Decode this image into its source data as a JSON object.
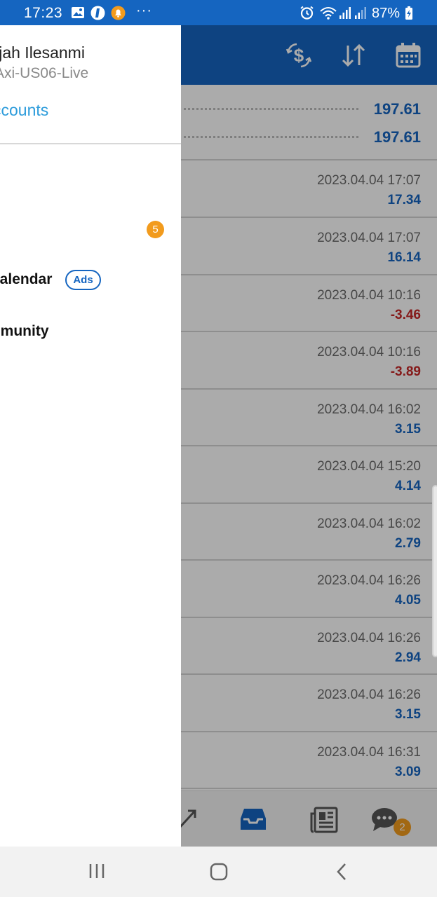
{
  "status_bar": {
    "time": "17:23",
    "battery": "87%",
    "more": "···"
  },
  "drawer": {
    "user_name": "lijah Ilesanmi",
    "server": "Axi-US06-Live",
    "accounts_link": "ccounts",
    "mailbox_badge": "5",
    "calendar_label": "calendar",
    "ads_badge": "Ads",
    "community_label": "mmunity"
  },
  "summary": {
    "row1_value": "197.61",
    "row2_value": "197.61"
  },
  "trades": [
    {
      "date": "2023.04.04 17:07",
      "profit": "17.34",
      "negative": false
    },
    {
      "date": "2023.04.04 17:07",
      "profit": "16.14",
      "negative": false
    },
    {
      "date": "2023.04.04 10:16",
      "profit": "-3.46",
      "negative": true
    },
    {
      "date": "2023.04.04 10:16",
      "profit": "-3.89",
      "negative": true
    },
    {
      "date": "2023.04.04 16:02",
      "profit": "3.15",
      "negative": false
    },
    {
      "date": "2023.04.04 15:20",
      "profit": "4.14",
      "negative": false
    },
    {
      "date": "2023.04.04 16:02",
      "profit": "2.79",
      "negative": false
    },
    {
      "date": "2023.04.04 16:26",
      "profit": "4.05",
      "negative": false
    },
    {
      "date": "2023.04.04 16:26",
      "profit": "2.94",
      "negative": false
    },
    {
      "date": "2023.04.04 16:26",
      "profit": "3.15",
      "negative": false
    },
    {
      "date": "2023.04.04 16:31",
      "profit": "3.09",
      "negative": false
    }
  ],
  "bottom_tabs": {
    "chat_badge": "2"
  },
  "icons": {
    "header": [
      "currency-exchange-icon",
      "sort-icon",
      "calendar-icon"
    ],
    "bottom_tabs": [
      "trade-icon",
      "history-inbox-icon",
      "news-icon",
      "chat-icon"
    ],
    "nav": [
      "recent-apps-icon",
      "home-icon",
      "back-icon"
    ]
  },
  "colors": {
    "primary": "#1565c0",
    "negative": "#c62828",
    "badge": "#f29b1d",
    "link": "#2d9cdb"
  }
}
